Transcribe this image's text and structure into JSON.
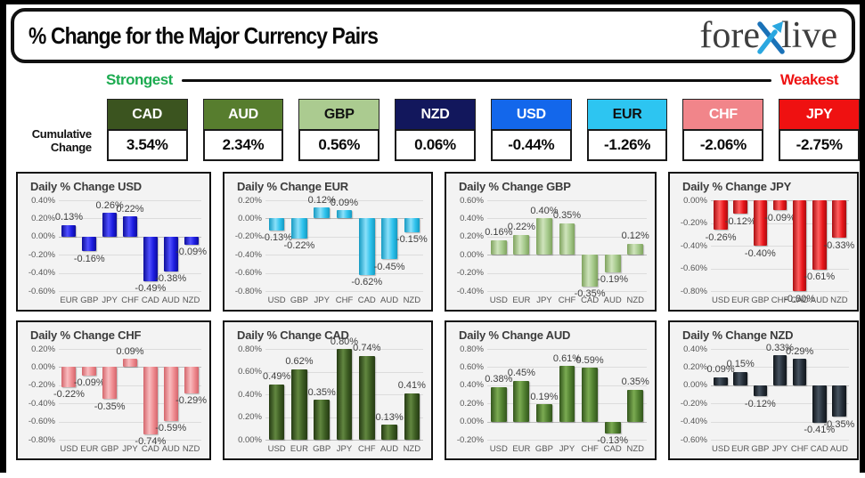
{
  "header": {
    "title": "% Change for the Major Currency Pairs",
    "logo_fore": "fore",
    "logo_live": "live"
  },
  "scale": {
    "strongest": "Strongest",
    "weakest": "Weakest",
    "strongest_color": "#1cab50",
    "weakest_color": "#ee1111"
  },
  "cumulative": {
    "label_line1": "Cumulative",
    "label_line2": "Change",
    "boxes": [
      {
        "code": "CAD",
        "value": "3.54%",
        "bg": "#3b541f",
        "fg": "#ffffff"
      },
      {
        "code": "AUD",
        "value": "2.34%",
        "bg": "#577d2e",
        "fg": "#ffffff"
      },
      {
        "code": "GBP",
        "value": "0.56%",
        "bg": "#abcb90",
        "fg": "#111111"
      },
      {
        "code": "NZD",
        "value": "0.06%",
        "bg": "#12175c",
        "fg": "#ffffff"
      },
      {
        "code": "USD",
        "value": "-0.44%",
        "bg": "#1367eb",
        "fg": "#ffffff"
      },
      {
        "code": "EUR",
        "value": "-1.26%",
        "bg": "#2dc5f1",
        "fg": "#111111"
      },
      {
        "code": "CHF",
        "value": "-2.06%",
        "bg": "#f1858a",
        "fg": "#ffffff"
      },
      {
        "code": "JPY",
        "value": "-2.75%",
        "bg": "#ef1111",
        "fg": "#ffffff"
      }
    ]
  },
  "chart_data": [
    {
      "type": "bar",
      "title": "Daily % Change USD",
      "categories": [
        "EUR",
        "GBP",
        "JPY",
        "CHF",
        "CAD",
        "AUD",
        "NZD"
      ],
      "values": [
        0.13,
        -0.16,
        0.26,
        0.22,
        -0.49,
        -0.38,
        -0.09
      ],
      "ylim": [
        -0.6,
        0.4
      ],
      "ystep": 0.2,
      "grid": true,
      "legend": "none",
      "bar_color": "#1c1ce0",
      "bar_light": "#5050ff",
      "bar_dark": "#0d0d99"
    },
    {
      "type": "bar",
      "title": "Daily % Change EUR",
      "categories": [
        "USD",
        "GBP",
        "JPY",
        "CHF",
        "CAD",
        "AUD",
        "NZD"
      ],
      "values": [
        -0.13,
        -0.22,
        0.12,
        0.09,
        -0.62,
        -0.45,
        -0.15
      ],
      "ylim": [
        -0.8,
        0.2
      ],
      "ystep": 0.2,
      "grid": true,
      "legend": "none",
      "bar_color": "#2ec2ec",
      "bar_light": "#8ae0fa",
      "bar_dark": "#149ac2"
    },
    {
      "type": "bar",
      "title": "Daily % Change GBP",
      "categories": [
        "USD",
        "EUR",
        "JPY",
        "CHF",
        "CAD",
        "AUD",
        "NZD"
      ],
      "values": [
        0.16,
        0.22,
        0.4,
        0.35,
        -0.35,
        -0.19,
        0.12
      ],
      "ylim": [
        -0.4,
        0.6
      ],
      "ystep": 0.2,
      "grid": true,
      "legend": "none",
      "bar_color": "#a5c98b",
      "bar_light": "#cfe4bc",
      "bar_dark": "#7fa35e"
    },
    {
      "type": "bar",
      "title": "Daily % Change JPY",
      "categories": [
        "USD",
        "EUR",
        "GBP",
        "CHF",
        "CAD",
        "AUD",
        "NZD"
      ],
      "values": [
        -0.26,
        -0.12,
        -0.4,
        -0.09,
        -0.8,
        -0.61,
        -0.33
      ],
      "ylim": [
        -0.8,
        0.0
      ],
      "ystep": 0.2,
      "grid": true,
      "legend": "none",
      "bar_color": "#e9161b",
      "bar_light": "#ff5f5f",
      "bar_dark": "#a90d10"
    },
    {
      "type": "bar",
      "title": "Daily % Change CHF",
      "categories": [
        "USD",
        "EUR",
        "GBP",
        "JPY",
        "CAD",
        "AUD",
        "NZD"
      ],
      "values": [
        -0.22,
        -0.09,
        -0.35,
        0.09,
        -0.74,
        -0.59,
        -0.29
      ],
      "ylim": [
        -0.8,
        0.2
      ],
      "ystep": 0.2,
      "grid": true,
      "legend": "none",
      "bar_color": "#ef8b90",
      "bar_light": "#f9bcbf",
      "bar_dark": "#d4666c"
    },
    {
      "type": "bar",
      "title": "Daily % Change CAD",
      "categories": [
        "USD",
        "EUR",
        "GBP",
        "JPY",
        "CHF",
        "AUD",
        "NZD"
      ],
      "values": [
        0.49,
        0.62,
        0.35,
        0.8,
        0.74,
        0.13,
        0.41
      ],
      "ylim": [
        0.0,
        0.8
      ],
      "ystep": 0.2,
      "grid": true,
      "legend": "none",
      "bar_color": "#3c5c22",
      "bar_light": "#628740",
      "bar_dark": "#253a13"
    },
    {
      "type": "bar",
      "title": "Daily % Change AUD",
      "categories": [
        "USD",
        "EUR",
        "GBP",
        "JPY",
        "CHF",
        "CAD",
        "NZD"
      ],
      "values": [
        0.38,
        0.45,
        0.19,
        0.61,
        0.59,
        -0.13,
        0.35
      ],
      "ylim": [
        -0.2,
        0.8
      ],
      "ystep": 0.2,
      "grid": true,
      "legend": "none",
      "bar_color": "#4f7e2f",
      "bar_light": "#7bab52",
      "bar_dark": "#33551c"
    },
    {
      "type": "bar",
      "title": "Daily % Change NZD",
      "categories": [
        "USD",
        "EUR",
        "GBP",
        "JPY",
        "CHF",
        "CAD",
        "AUD"
      ],
      "values": [
        0.09,
        0.15,
        -0.12,
        0.33,
        0.29,
        -0.41,
        -0.35
      ],
      "ylim": [
        -0.6,
        0.4
      ],
      "ystep": 0.2,
      "grid": true,
      "legend": "none",
      "bar_color": "#252e38",
      "bar_light": "#46525f",
      "bar_dark": "#10151a"
    }
  ]
}
